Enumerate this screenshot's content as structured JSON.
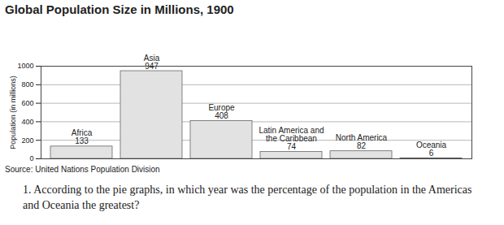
{
  "chart_data": {
    "type": "bar",
    "title": "Global Population Size in Millions, 1900",
    "y_label": "Population (in millions)",
    "categories": [
      "Africa",
      "Asia",
      "Europe",
      "Latin America and the Caribbean",
      "North America",
      "Oceania"
    ],
    "values": [
      133,
      947,
      408,
      74,
      82,
      6
    ],
    "color": "#e2e2e2",
    "ylim": [
      0,
      1000
    ],
    "yticks": [
      0,
      200,
      400,
      600,
      800,
      1000
    ],
    "grid": true,
    "data_labels": true,
    "tick_labels": "y",
    "source": "Source: United Nations Population Division"
  },
  "question": "1. According to the pie graphs, in which year was the percentage of the population in the Americas and Oceania the greatest?"
}
